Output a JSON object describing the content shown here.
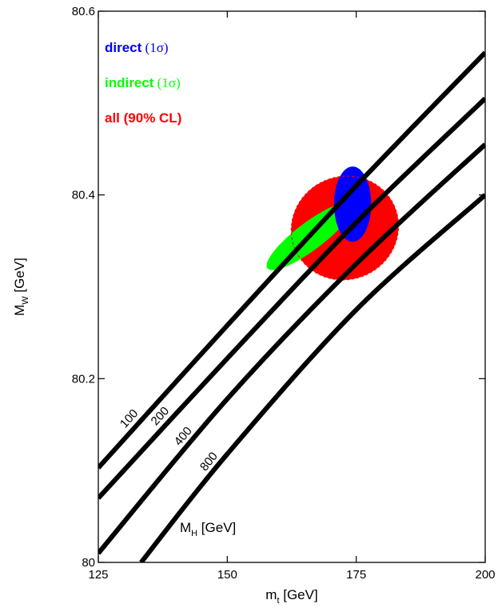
{
  "chart_data": {
    "type": "line",
    "xlabel": {
      "main": "m",
      "sub": "t",
      "unit": " [GeV]"
    },
    "ylabel": {
      "main": "M",
      "sub": "W",
      "unit": " [GeV]"
    },
    "xlim": [
      125,
      200
    ],
    "ylim": [
      80,
      80.6
    ],
    "x_ticks": [
      125,
      150,
      175,
      200
    ],
    "x_tick_labels": [
      "125",
      "150",
      "175",
      "200"
    ],
    "y_ticks": [
      80,
      80.2,
      80.4,
      80.6
    ],
    "y_tick_labels": [
      "80",
      "80.2",
      "80.4",
      "80.6"
    ],
    "grid": false,
    "lines_title": {
      "main": "M",
      "sub": "H",
      "unit": " [GeV]"
    },
    "lines": [
      {
        "name": "100",
        "points": [
          [
            125,
            80.103
          ],
          [
            150,
            80.258
          ],
          [
            175,
            80.41
          ],
          [
            200,
            80.555
          ]
        ]
      },
      {
        "name": "200",
        "points": [
          [
            125,
            80.07
          ],
          [
            150,
            80.222
          ],
          [
            175,
            80.37
          ],
          [
            200,
            80.505
          ]
        ]
      },
      {
        "name": "400",
        "points": [
          [
            125,
            80.01
          ],
          [
            150,
            80.178
          ],
          [
            175,
            80.325
          ],
          [
            200,
            80.455
          ]
        ]
      },
      {
        "name": "800",
        "points": [
          [
            133.3,
            80.0
          ],
          [
            150,
            80.118
          ],
          [
            175,
            80.275
          ],
          [
            200,
            80.4
          ]
        ]
      }
    ],
    "ellipses": [
      {
        "name": "all",
        "cx": 172.8,
        "cy": 80.364,
        "rx": 10.5,
        "ry": 0.056,
        "angle_deg": -25,
        "color": "#ff0000"
      },
      {
        "name": "indirect",
        "cx": 166.0,
        "cy": 80.355,
        "rx": 10.3,
        "ry": 0.015,
        "angle_deg": -37,
        "color": "#00ff00"
      },
      {
        "name": "direct",
        "cx": 174.3,
        "cy": 80.39,
        "rx": 3.6,
        "ry": 0.041,
        "angle_deg": 0,
        "color": "#0000ff"
      }
    ],
    "legend": [
      {
        "label": "direct",
        "sub": "(1σ)",
        "color": "#0000ff"
      },
      {
        "label": "indirect",
        "sub": "(1σ)",
        "color": "#00ff00"
      },
      {
        "label": "all (90% CL)",
        "sub": "",
        "color": "#ff0000"
      }
    ],
    "legend_position": "top-left"
  }
}
